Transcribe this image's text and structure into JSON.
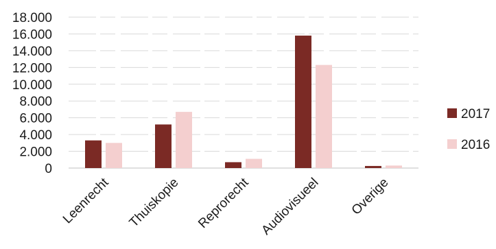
{
  "chart_data": {
    "type": "bar",
    "categories": [
      "Leenrecht",
      "Thuiskopie",
      "Reprorecht",
      "Audiovisueel",
      "Overige"
    ],
    "series": [
      {
        "name": "2017",
        "color": "#7b2a25",
        "values": [
          3300,
          5200,
          700,
          15800,
          250
        ]
      },
      {
        "name": "2016",
        "color": "#f4cfcf",
        "values": [
          3000,
          6700,
          1100,
          12300,
          300
        ]
      }
    ],
    "yticks": [
      "0",
      "2.000",
      "4.000",
      "6.000",
      "8.000",
      "10.000",
      "12.000",
      "14.000",
      "16.000",
      "18.000"
    ],
    "ylim": [
      0,
      18000
    ],
    "grid": true,
    "legend_position": "right"
  }
}
